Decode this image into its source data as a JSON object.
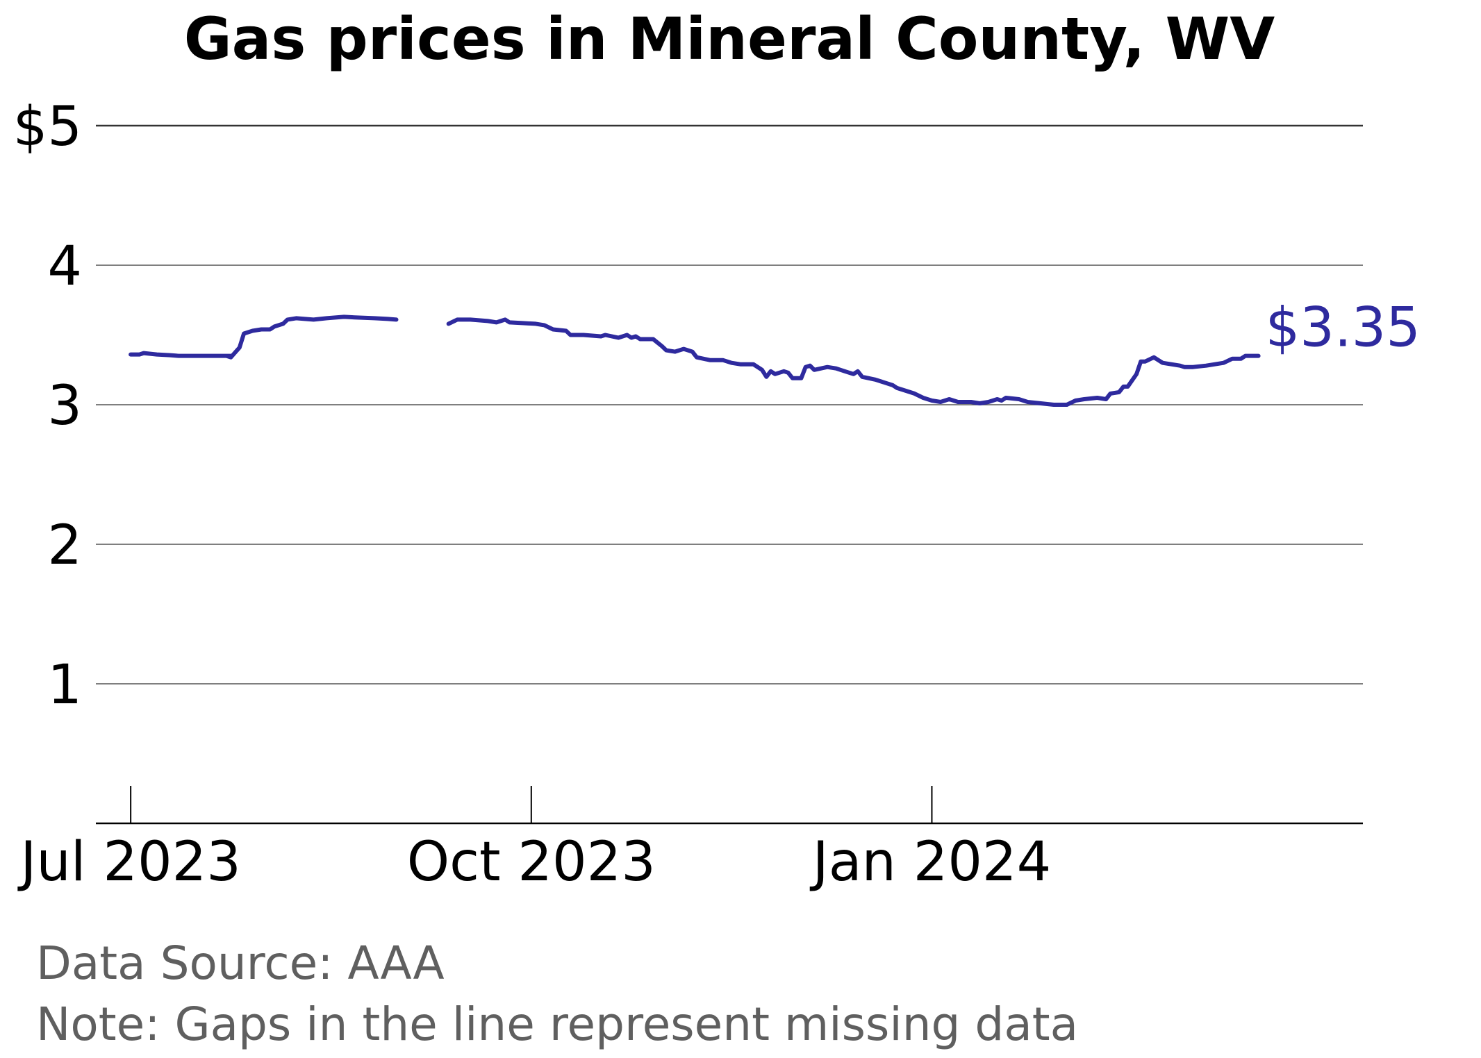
{
  "chart_data": {
    "type": "line",
    "title": "Gas prices in Mineral County, WV",
    "xlabel": "",
    "ylabel": "",
    "ylim": [
      0,
      5
    ],
    "y_ticks": [
      {
        "value": 5,
        "label": "$5"
      },
      {
        "value": 4,
        "label": "4"
      },
      {
        "value": 3,
        "label": "3"
      },
      {
        "value": 2,
        "label": "2"
      },
      {
        "value": 1,
        "label": "1"
      }
    ],
    "xlim": [
      "2023-06-23",
      "2024-04-09"
    ],
    "x_ticks": [
      {
        "date": "2023-07-01",
        "label": "Jul 2023"
      },
      {
        "date": "2023-10-01",
        "label": "Oct 2023"
      },
      {
        "date": "2024-01-01",
        "label": "Jan 2024"
      }
    ],
    "grid": "horizontal",
    "line_color": "#2e2a9e",
    "end_label": "$3.35",
    "series": [
      {
        "values": [
          [
            "2023-07-01",
            3.36
          ],
          [
            "2023-07-03",
            3.36
          ],
          [
            "2023-07-04",
            3.37
          ],
          [
            "2023-07-07",
            3.36
          ],
          [
            "2023-07-10",
            3.355
          ],
          [
            "2023-07-12",
            3.35
          ],
          [
            "2023-07-17",
            3.35
          ],
          [
            "2023-07-20",
            3.35
          ],
          [
            "2023-07-24",
            3.35
          ],
          [
            "2023-07-23",
            3.35
          ],
          [
            "2023-07-24",
            3.34
          ],
          [
            "2023-07-26",
            3.41
          ],
          [
            "2023-07-27",
            3.51
          ],
          [
            "2023-07-29",
            3.53
          ],
          [
            "2023-07-31",
            3.54
          ],
          [
            "2023-08-02",
            3.54
          ],
          [
            "2023-08-03",
            3.56
          ],
          [
            "2023-08-05",
            3.58
          ],
          [
            "2023-08-06",
            3.61
          ],
          [
            "2023-08-08",
            3.62
          ],
          [
            "2023-08-12",
            3.61
          ],
          [
            "2023-08-15",
            3.62
          ],
          [
            "2023-08-19",
            3.63
          ],
          [
            "2023-08-22",
            3.625
          ],
          [
            "2023-08-26",
            3.62
          ],
          [
            "2023-08-29",
            3.615
          ],
          [
            "2023-08-31",
            3.61
          ]
        ]
      },
      {
        "values": [
          [
            "2023-09-12",
            3.58
          ],
          [
            "2023-09-14",
            3.61
          ],
          [
            "2023-09-17",
            3.61
          ],
          [
            "2023-09-21",
            3.6
          ],
          [
            "2023-09-23",
            3.59
          ],
          [
            "2023-09-25",
            3.61
          ],
          [
            "2023-09-26",
            3.59
          ],
          [
            "2023-09-29",
            3.585
          ],
          [
            "2023-10-02",
            3.58
          ],
          [
            "2023-10-04",
            3.57
          ],
          [
            "2023-10-06",
            3.54
          ],
          [
            "2023-10-09",
            3.53
          ],
          [
            "2023-10-10",
            3.5
          ],
          [
            "2023-10-13",
            3.5
          ],
          [
            "2023-10-17",
            3.49
          ],
          [
            "2023-10-18",
            3.5
          ],
          [
            "2023-10-21",
            3.48
          ],
          [
            "2023-10-23",
            3.5
          ],
          [
            "2023-10-24",
            3.48
          ],
          [
            "2023-10-25",
            3.49
          ],
          [
            "2023-10-26",
            3.47
          ],
          [
            "2023-10-29",
            3.47
          ],
          [
            "2023-10-31",
            3.42
          ],
          [
            "2023-11-01",
            3.39
          ],
          [
            "2023-11-03",
            3.38
          ],
          [
            "2023-11-05",
            3.4
          ],
          [
            "2023-11-07",
            3.38
          ],
          [
            "2023-11-08",
            3.34
          ],
          [
            "2023-11-11",
            3.32
          ],
          [
            "2023-11-14",
            3.32
          ],
          [
            "2023-11-16",
            3.3
          ],
          [
            "2023-11-18",
            3.29
          ],
          [
            "2023-11-21",
            3.29
          ],
          [
            "2023-11-23",
            3.25
          ],
          [
            "2023-11-24",
            3.2
          ],
          [
            "2023-11-25",
            3.24
          ],
          [
            "2023-11-26",
            3.22
          ],
          [
            "2023-11-28",
            3.24
          ],
          [
            "2023-11-29",
            3.23
          ],
          [
            "2023-11-30",
            3.19
          ],
          [
            "2023-12-02",
            3.19
          ],
          [
            "2023-12-03",
            3.27
          ],
          [
            "2023-12-04",
            3.28
          ],
          [
            "2023-12-05",
            3.25
          ],
          [
            "2023-12-08",
            3.27
          ],
          [
            "2023-12-10",
            3.26
          ],
          [
            "2023-12-12",
            3.24
          ],
          [
            "2023-12-14",
            3.22
          ],
          [
            "2023-12-15",
            3.24
          ],
          [
            "2023-12-16",
            3.2
          ],
          [
            "2023-12-19",
            3.18
          ],
          [
            "2023-12-21",
            3.16
          ],
          [
            "2023-12-23",
            3.14
          ],
          [
            "2023-12-24",
            3.12
          ],
          [
            "2023-12-26",
            3.1
          ],
          [
            "2023-12-28",
            3.08
          ],
          [
            "2023-12-30",
            3.05
          ],
          [
            "2024-01-01",
            3.03
          ],
          [
            "2024-01-03",
            3.02
          ],
          [
            "2024-01-05",
            3.04
          ],
          [
            "2024-01-07",
            3.02
          ],
          [
            "2024-01-10",
            3.02
          ],
          [
            "2024-01-12",
            3.01
          ],
          [
            "2024-01-14",
            3.02
          ],
          [
            "2024-01-16",
            3.04
          ],
          [
            "2024-01-17",
            3.03
          ],
          [
            "2024-01-18",
            3.05
          ],
          [
            "2024-01-21",
            3.04
          ],
          [
            "2024-01-23",
            3.02
          ],
          [
            "2024-01-26",
            3.01
          ],
          [
            "2024-01-29",
            3.0
          ],
          [
            "2024-02-01",
            3.0
          ],
          [
            "2024-02-03",
            3.03
          ],
          [
            "2024-02-05",
            3.04
          ],
          [
            "2024-02-08",
            3.05
          ],
          [
            "2024-02-10",
            3.04
          ],
          [
            "2024-02-11",
            3.08
          ],
          [
            "2024-02-13",
            3.09
          ],
          [
            "2024-02-14",
            3.13
          ],
          [
            "2024-02-15",
            3.13
          ],
          [
            "2024-02-17",
            3.22
          ],
          [
            "2024-02-18",
            3.31
          ],
          [
            "2024-02-19",
            3.31
          ],
          [
            "2024-02-21",
            3.34
          ],
          [
            "2024-02-23",
            3.3
          ],
          [
            "2024-02-25",
            3.29
          ],
          [
            "2024-02-27",
            3.28
          ],
          [
            "2024-02-28",
            3.27
          ],
          [
            "2024-03-01",
            3.27
          ],
          [
            "2024-03-04",
            3.28
          ],
          [
            "2024-03-06",
            3.29
          ],
          [
            "2024-03-08",
            3.3
          ],
          [
            "2024-03-10",
            3.33
          ],
          [
            "2024-03-12",
            3.33
          ],
          [
            "2024-03-13",
            3.35
          ],
          [
            "2024-03-14",
            3.35
          ],
          [
            "2024-03-16",
            3.35
          ]
        ]
      }
    ]
  },
  "footer": {
    "source": "Data Source: AAA",
    "note": "Note: Gaps in the line represent missing data"
  }
}
